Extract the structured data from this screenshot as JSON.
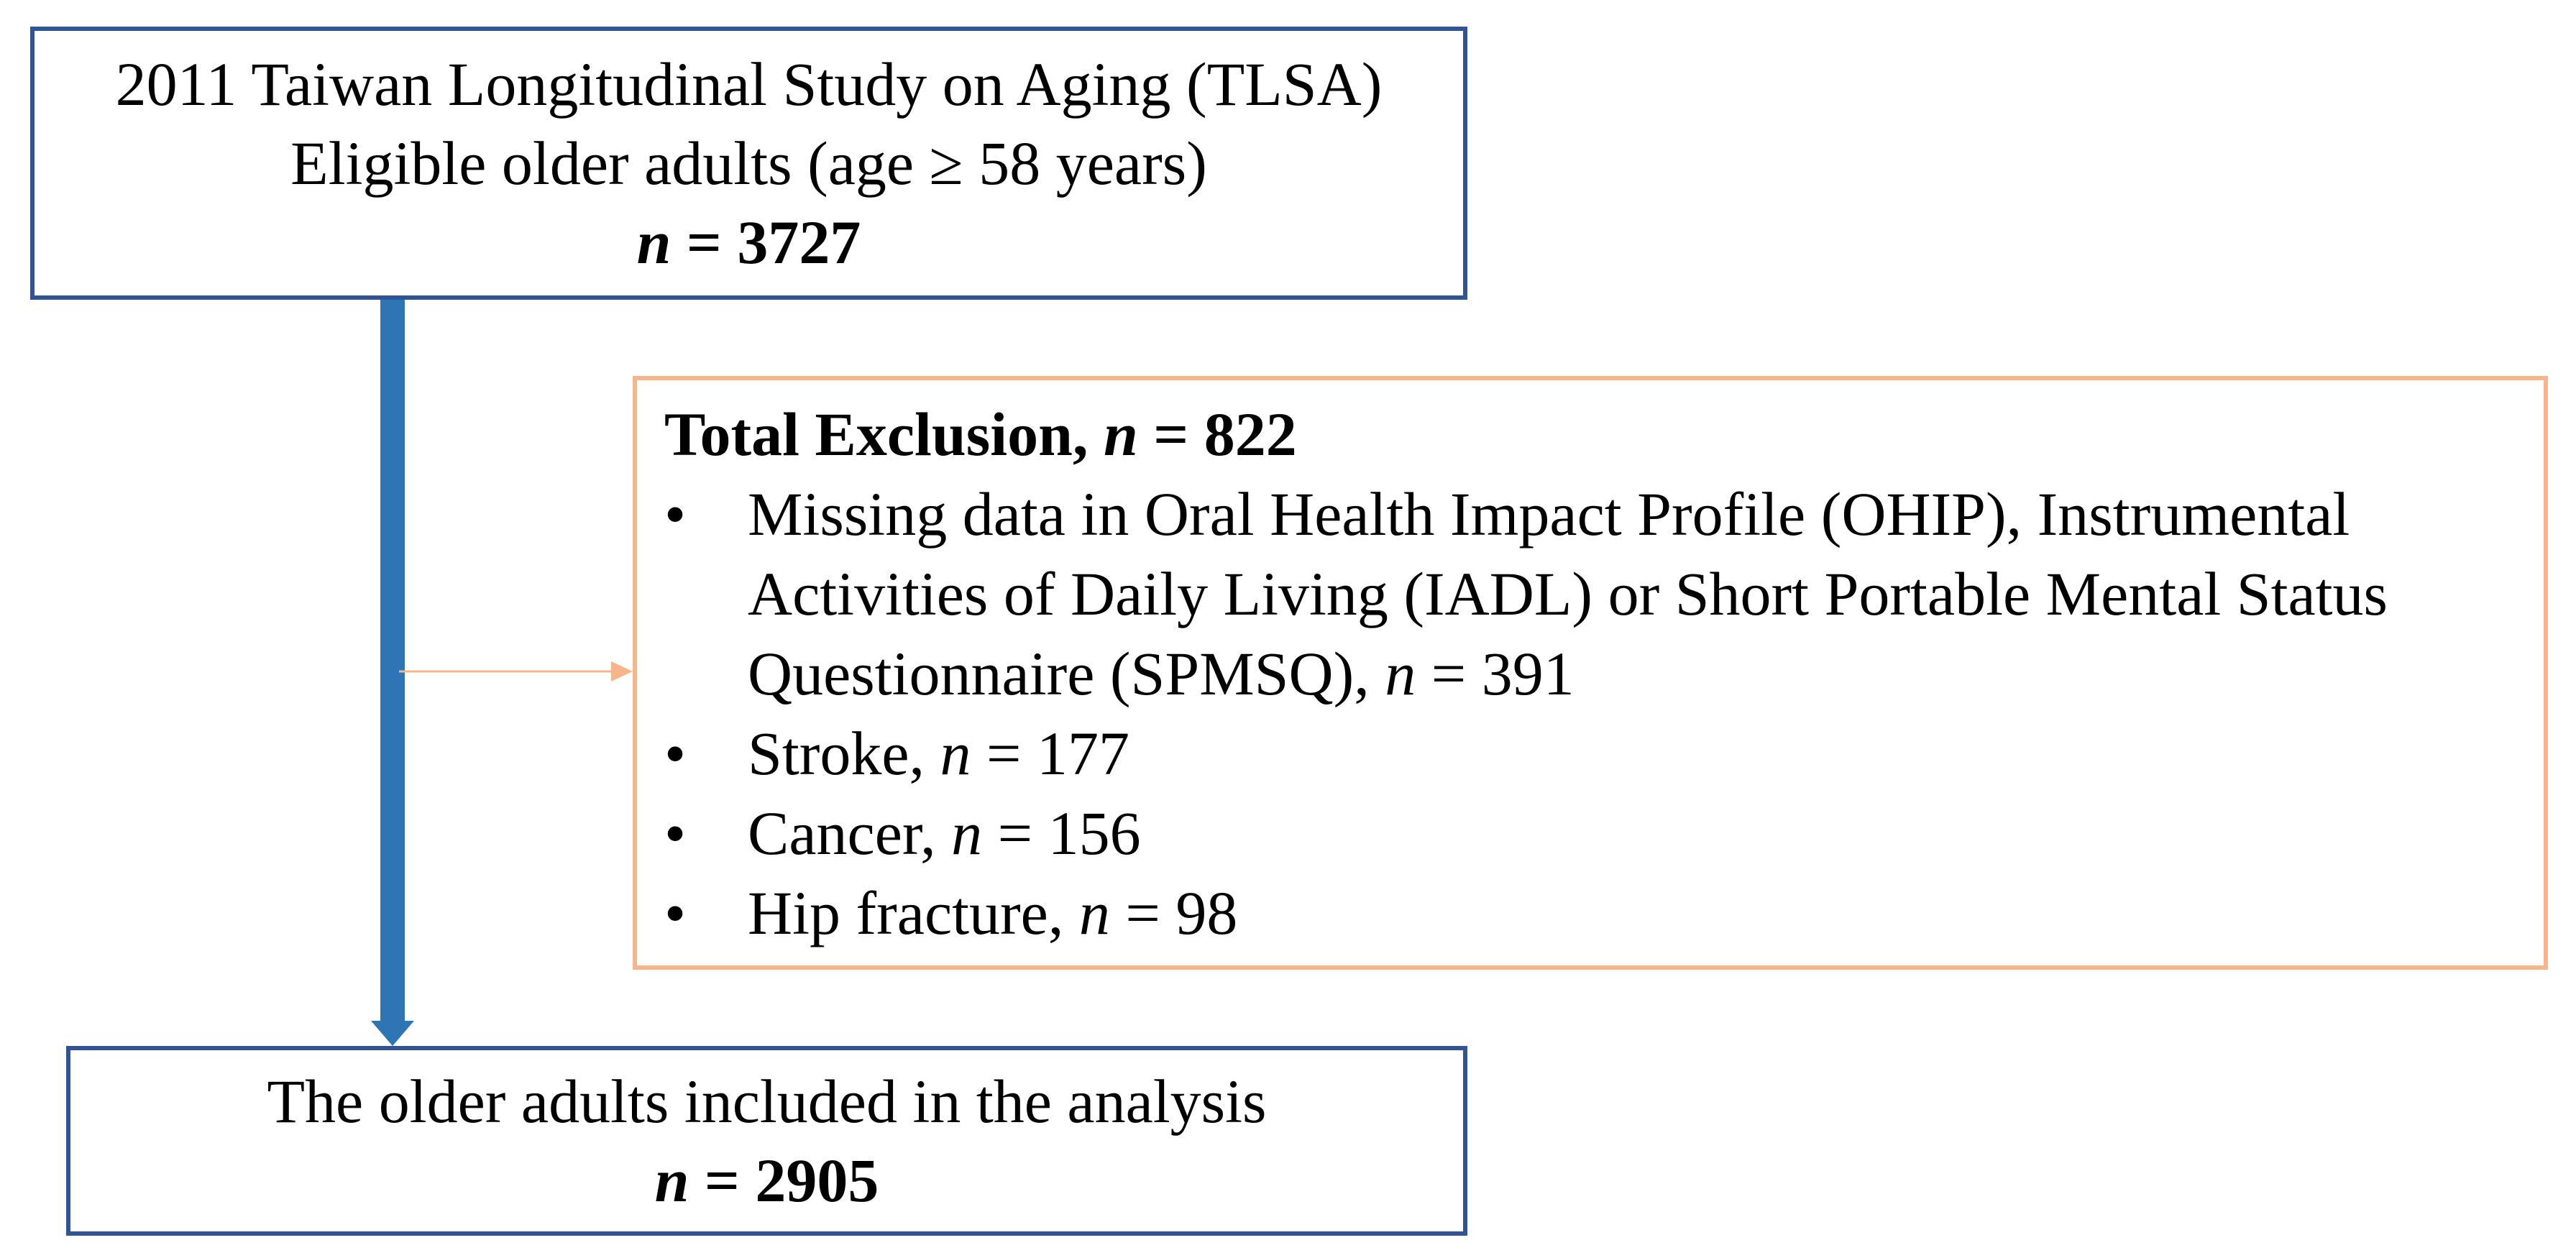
{
  "top_box": {
    "line1": "2011 Taiwan Longitudinal Study on Aging (TLSA)",
    "line2": "Eligible older adults (age ≥ 58 years)",
    "n_label": "n",
    "n_value": " = 3727"
  },
  "exclusion": {
    "title_prefix": "Total Exclusion, ",
    "n_label": "n",
    "n_value": " = 822",
    "bullet_symbol": "•",
    "items": [
      {
        "text_line1": "Missing data in Oral Health Impact Profile (OHIP), Instrumental",
        "text_line2": "Activities of Daily Living (IADL) or Short Portable Mental Status",
        "text_line3": "Questionnaire (SPMSQ), ",
        "n_label": "n",
        "n_value": " = 391"
      },
      {
        "text": "Stroke, ",
        "n_label": "n",
        "n_value": " = 177"
      },
      {
        "text": "Cancer, ",
        "n_label": "n",
        "n_value": " = 156"
      },
      {
        "text": "Hip fracture, ",
        "n_label": "n",
        "n_value": " = 98"
      }
    ]
  },
  "bottom_box": {
    "line1": "The older adults included in the analysis",
    "n_label": "n",
    "n_value": " = 2905"
  },
  "colors": {
    "main_border": "#2f5597",
    "main_arrow": "#2e75b6",
    "exclusion_border": "#f8b58c",
    "exclusion_arrow": "#f8b58c"
  }
}
